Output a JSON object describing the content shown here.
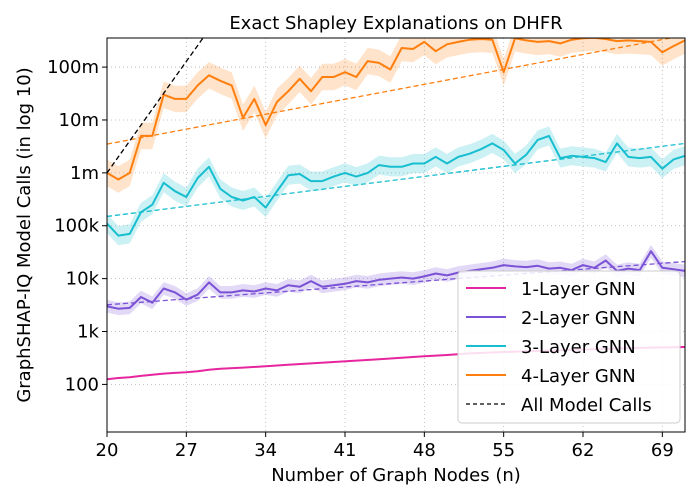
{
  "chart_data": {
    "type": "line",
    "title": "Exact Shapley Explanations on DHFR",
    "xlabel": "Number of Graph Nodes (n)",
    "ylabel": "GraphSHAP-IQ Model Calls (in log 10)",
    "xlim": [
      20,
      71
    ],
    "ylim_log10": [
      1.1,
      8.55
    ],
    "yscale": "log",
    "grid": true,
    "legend_position": "bottom-right",
    "x_ticks": [
      20,
      27,
      34,
      41,
      48,
      55,
      62,
      69
    ],
    "y_ticks": [
      {
        "label": "100",
        "log10": 2
      },
      {
        "label": "1k",
        "log10": 3
      },
      {
        "label": "10k",
        "log10": 4
      },
      {
        "label": "100k",
        "log10": 5
      },
      {
        "label": "1m",
        "log10": 6
      },
      {
        "label": "10m",
        "log10": 7
      },
      {
        "label": "100m",
        "log10": 8
      }
    ],
    "series": [
      {
        "name": "1-Layer GNN",
        "color": "#e6259e",
        "x": [
          20,
          21,
          22,
          23,
          24,
          25,
          26,
          27,
          28,
          29,
          30,
          32,
          34,
          36,
          38,
          40,
          42,
          44,
          46,
          48,
          50,
          52,
          55,
          58,
          61,
          64,
          67,
          71
        ],
        "y": [
          125,
          132,
          137,
          145,
          152,
          160,
          165,
          170,
          178,
          190,
          198,
          208,
          220,
          235,
          250,
          265,
          282,
          300,
          320,
          340,
          360,
          385,
          410,
          430,
          450,
          470,
          490,
          510
        ]
      },
      {
        "name": "2-Layer GNN",
        "color": "#7b52d6",
        "x": [
          20,
          21,
          22,
          23,
          24,
          25,
          26,
          27,
          28,
          29,
          30,
          31,
          32,
          33,
          34,
          35,
          36,
          37,
          38,
          39,
          40,
          41,
          42,
          43,
          44,
          45,
          46,
          47,
          48,
          49,
          50,
          51,
          52,
          53,
          54,
          55,
          56,
          57,
          58,
          59,
          60,
          61,
          62,
          63,
          64,
          65,
          66,
          67,
          68,
          69,
          70,
          71
        ],
        "y": [
          3000,
          2700,
          2800,
          4500,
          3500,
          6500,
          5500,
          4000,
          5000,
          8500,
          5500,
          5500,
          6000,
          5700,
          6500,
          6000,
          7500,
          7000,
          9000,
          7000,
          7500,
          8000,
          9000,
          8500,
          9500,
          10000,
          10500,
          10000,
          11000,
          12500,
          11500,
          13000,
          14000,
          15000,
          16000,
          18000,
          17000,
          16500,
          17500,
          15500,
          16000,
          14500,
          18000,
          16000,
          22000,
          14000,
          15500,
          14500,
          33000,
          16000,
          15000,
          14000
        ],
        "band_width_log10": 0.12
      },
      {
        "name": "3-Layer GNN",
        "color": "#17becf",
        "x": [
          20,
          21,
          22,
          23,
          24,
          25,
          26,
          27,
          28,
          29,
          30,
          31,
          32,
          33,
          34,
          35,
          36,
          37,
          38,
          39,
          40,
          41,
          42,
          43,
          44,
          45,
          46,
          47,
          48,
          49,
          50,
          51,
          52,
          53,
          54,
          55,
          56,
          57,
          58,
          59,
          60,
          61,
          62,
          63,
          64,
          65,
          66,
          67,
          68,
          69,
          70,
          71
        ],
        "y": [
          110000,
          65000,
          70000,
          180000,
          250000,
          650000,
          450000,
          350000,
          800000,
          1300000,
          500000,
          350000,
          300000,
          350000,
          220000,
          450000,
          900000,
          950000,
          700000,
          700000,
          850000,
          1000000,
          850000,
          1000000,
          1400000,
          1300000,
          1300000,
          1500000,
          1500000,
          2000000,
          1500000,
          2000000,
          2300000,
          2800000,
          3600000,
          2700000,
          1500000,
          2200000,
          4200000,
          5000000,
          1900000,
          2100000,
          2000000,
          1900000,
          1600000,
          3600000,
          2000000,
          1900000,
          2000000,
          1200000,
          1800000,
          2100000
        ],
        "band_width_log10": 0.18
      },
      {
        "name": "4-Layer GNN",
        "color": "#ff7f0e",
        "x": [
          20,
          21,
          22,
          23,
          24,
          25,
          26,
          27,
          28,
          29,
          30,
          31,
          32,
          33,
          34,
          35,
          36,
          37,
          38,
          39,
          40,
          41,
          42,
          43,
          44,
          45,
          46,
          47,
          48,
          49,
          50,
          51,
          52,
          53,
          54,
          55,
          56,
          57,
          58,
          59,
          60,
          61,
          62,
          63,
          64,
          65,
          66,
          67,
          68,
          69,
          70,
          71
        ],
        "y": [
          1000000,
          750000,
          1000000,
          5000000,
          5000000,
          30000000,
          25000000,
          25000000,
          45000000,
          70000000,
          55000000,
          45000000,
          11000000,
          25000000,
          8000000,
          22000000,
          35000000,
          60000000,
          35000000,
          65000000,
          65000000,
          80000000,
          65000000,
          130000000,
          120000000,
          90000000,
          230000000,
          220000000,
          300000000,
          200000000,
          270000000,
          300000000,
          330000000,
          340000000,
          330000000,
          80000000,
          350000000,
          320000000,
          300000000,
          310000000,
          280000000,
          330000000,
          350000000,
          360000000,
          340000000,
          310000000,
          320000000,
          310000000,
          300000000,
          190000000,
          250000000,
          320000000
        ],
        "band_width_log10": 0.25
      }
    ],
    "trend_lines": [
      {
        "color": "#7b52d6",
        "x": [
          20,
          71
        ],
        "y": [
          3200,
          21000
        ]
      },
      {
        "color": "#17becf",
        "x": [
          20,
          71
        ],
        "y": [
          150000,
          3600000
        ]
      },
      {
        "color": "#ff7f0e",
        "x": [
          20,
          71
        ],
        "y": [
          3500000,
          400000000
        ]
      }
    ],
    "all_model_calls": {
      "name": "All Model Calls",
      "color": "#000000",
      "x": [
        20,
        21,
        22,
        23,
        24,
        25,
        26,
        27,
        28,
        28.5
      ],
      "y": [
        1000000,
        2000000,
        4000000,
        8000000,
        16000000,
        32000000,
        64000000,
        128000000,
        256000000,
        362000000
      ]
    }
  }
}
